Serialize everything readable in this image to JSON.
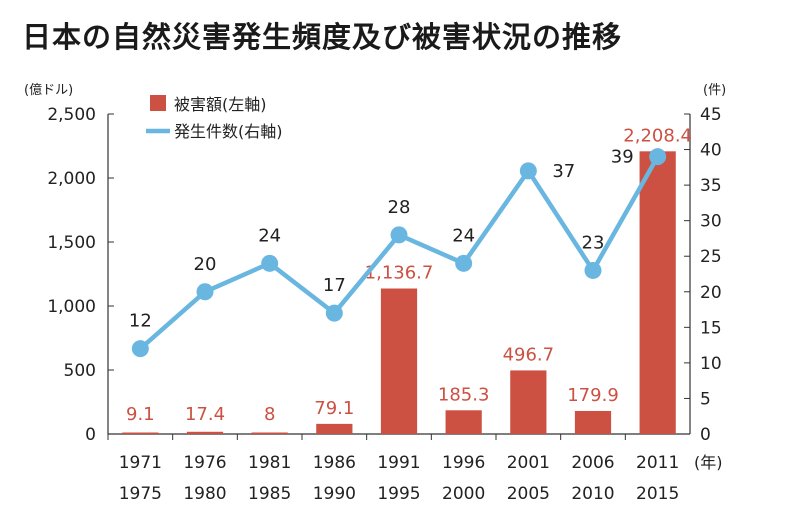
{
  "chart_data": {
    "type": "bar",
    "title": "日本の自然災害発生頻度及び被害状況の推移",
    "left_axis_unit": "(億ドル)",
    "right_axis_unit": "(件)",
    "x_unit": "(年)",
    "categories": [
      [
        "1971",
        "1975"
      ],
      [
        "1976",
        "1980"
      ],
      [
        "1981",
        "1985"
      ],
      [
        "1986",
        "1990"
      ],
      [
        "1991",
        "1995"
      ],
      [
        "1996",
        "2000"
      ],
      [
        "2001",
        "2005"
      ],
      [
        "2006",
        "2010"
      ],
      [
        "2011",
        "2015"
      ]
    ],
    "series": [
      {
        "name": "被害額(左軸)",
        "type": "bar",
        "axis": "left",
        "values": [
          9.1,
          17.4,
          8,
          79.1,
          1136.7,
          185.3,
          496.7,
          179.9,
          2208.4
        ],
        "labels": [
          "9.1",
          "17.4",
          "8",
          "79.1",
          "1,136.7",
          "185.3",
          "496.7",
          "179.9",
          "2,208.4"
        ],
        "color": "#cc5142"
      },
      {
        "name": "発生件数(右軸)",
        "type": "line",
        "axis": "right",
        "values": [
          12,
          20,
          24,
          17,
          28,
          24,
          37,
          23,
          39
        ],
        "labels": [
          "12",
          "20",
          "24",
          "17",
          "28",
          "24",
          "37",
          "23",
          "39"
        ],
        "color": "#69b6e0"
      }
    ],
    "left_ylim": [
      0,
      2500
    ],
    "left_ticks": [
      "0",
      "500",
      "1,000",
      "1,500",
      "2,000",
      "2,500"
    ],
    "right_ylim": [
      0,
      45
    ],
    "right_ticks": [
      "0",
      "5",
      "10",
      "15",
      "20",
      "25",
      "30",
      "35",
      "40",
      "45"
    ],
    "grid": false,
    "legend_position": "top-left"
  }
}
